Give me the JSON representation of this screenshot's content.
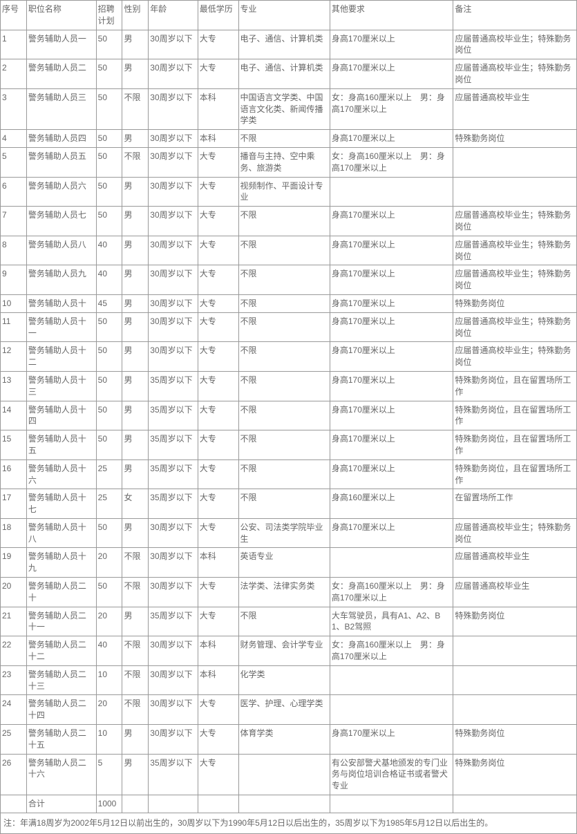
{
  "table": {
    "headers": [
      "序号",
      "职位名称",
      "招聘计划",
      "性别",
      "年龄",
      "最低学历",
      "专业",
      "其他要求",
      "备注"
    ],
    "rows": [
      [
        "1",
        "警务辅助人员一",
        "50",
        "男",
        "30周岁以下",
        "大专",
        "电子、通信、计算机类",
        "身高170厘米以上",
        "应届普通高校毕业生；特殊勤务岗位"
      ],
      [
        "2",
        "警务辅助人员二",
        "50",
        "男",
        "30周岁以下",
        "大专",
        "电子、通信、计算机类",
        "身高170厘米以上",
        "应届普通高校毕业生；特殊勤务岗位"
      ],
      [
        "3",
        "警务辅助人员三",
        "50",
        "不限",
        "30周岁以下",
        "本科",
        "中国语言文学类、中国语言文化类、新闻传播学类",
        "女：身高160厘米以上　男：身高170厘米以上",
        "应届普通高校毕业生"
      ],
      [
        "4",
        "警务辅助人员四",
        "50",
        "男",
        "30周岁以下",
        "本科",
        "不限",
        "身高170厘米以上",
        "特殊勤务岗位"
      ],
      [
        "5",
        "警务辅助人员五",
        "50",
        "不限",
        "30周岁以下",
        "大专",
        "播音与主持、空中乘务、旅游类",
        "女：身高160厘米以上　男：身高170厘米以上",
        ""
      ],
      [
        "6",
        "警务辅助人员六",
        "50",
        "男",
        "30周岁以下",
        "大专",
        "视频制作、平面设计专业",
        "",
        ""
      ],
      [
        "7",
        "警务辅助人员七",
        "50",
        "男",
        "30周岁以下",
        "大专",
        "不限",
        "身高170厘米以上",
        "应届普通高校毕业生；特殊勤务岗位"
      ],
      [
        "8",
        "警务辅助人员八",
        "40",
        "男",
        "30周岁以下",
        "大专",
        "不限",
        "身高170厘米以上",
        "应届普通高校毕业生；特殊勤务岗位"
      ],
      [
        "9",
        "警务辅助人员九",
        "40",
        "男",
        "30周岁以下",
        "大专",
        "不限",
        "身高170厘米以上",
        "应届普通高校毕业生；特殊勤务岗位"
      ],
      [
        "10",
        "警务辅助人员十",
        "45",
        "男",
        "30周岁以下",
        "大专",
        "不限",
        "身高170厘米以上",
        "特殊勤务岗位"
      ],
      [
        "11",
        "警务辅助人员十一",
        "50",
        "男",
        "30周岁以下",
        "大专",
        "不限",
        "身高170厘米以上",
        "应届普通高校毕业生；特殊勤务岗位"
      ],
      [
        "12",
        "警务辅助人员十二",
        "50",
        "男",
        "30周岁以下",
        "大专",
        "不限",
        "身高170厘米以上",
        "应届普通高校毕业生；特殊勤务岗位"
      ],
      [
        "13",
        "警务辅助人员十三",
        "50",
        "男",
        "35周岁以下",
        "大专",
        "不限",
        "身高170厘米以上",
        "特殊勤务岗位，且在留置场所工作"
      ],
      [
        "14",
        "警务辅助人员十四",
        "50",
        "男",
        "35周岁以下",
        "大专",
        "不限",
        "身高170厘米以上",
        "特殊勤务岗位，且在留置场所工作"
      ],
      [
        "15",
        "警务辅助人员十五",
        "50",
        "男",
        "35周岁以下",
        "大专",
        "不限",
        "身高170厘米以上",
        "特殊勤务岗位，且在留置场所工作"
      ],
      [
        "16",
        "警务辅助人员十六",
        "25",
        "男",
        "35周岁以下",
        "大专",
        "不限",
        "身高170厘米以上",
        "特殊勤务岗位，且在留置场所工作"
      ],
      [
        "17",
        "警务辅助人员十七",
        "25",
        "女",
        "35周岁以下",
        "大专",
        "不限",
        "身高160厘米以上",
        "在留置场所工作"
      ],
      [
        "18",
        "警务辅助人员十八",
        "50",
        "男",
        "30周岁以下",
        "大专",
        "公安、司法类学院毕业生",
        "身高170厘米以上",
        "应届普通高校毕业生；特殊勤务岗位"
      ],
      [
        "19",
        "警务辅助人员十九",
        "20",
        "不限",
        "30周岁以下",
        "本科",
        "英语专业",
        "",
        "应届普通高校毕业生"
      ],
      [
        "20",
        "警务辅助人员二十",
        "50",
        "不限",
        "30周岁以下",
        "大专",
        "法学类、法律实务类",
        "女：身高160厘米以上　男：身高170厘米以上",
        "应届普通高校毕业生"
      ],
      [
        "21",
        "警务辅助人员二十一",
        "20",
        "男",
        "35周岁以下",
        "大专",
        "不限",
        "大车驾驶员，具有A1、A2、B1、B2驾照",
        "特殊勤务岗位"
      ],
      [
        "22",
        "警务辅助人员二十二",
        "40",
        "不限",
        "30周岁以下",
        "本科",
        "财务管理、会计学专业",
        "女：身高160厘米以上　男：身高170厘米以上",
        ""
      ],
      [
        "23",
        "警务辅助人员二十三",
        "10",
        "不限",
        "30周岁以下",
        "本科",
        "化学类",
        "",
        ""
      ],
      [
        "24",
        "警务辅助人员二十四",
        "20",
        "不限",
        "30周岁以下",
        "大专",
        "医学、护理、心理学类",
        "",
        ""
      ],
      [
        "25",
        "警务辅助人员二十五",
        "10",
        "男",
        "30周岁以下",
        "大专",
        "体育学类",
        "身高170厘米以上",
        "特殊勤务岗位"
      ],
      [
        "26",
        "警务辅助人员二十六",
        "5",
        "男",
        "35周岁以下",
        "大专",
        "",
        "有公安部警犬基地颁发的专门业务与岗位培训合格证书或者警犬专业",
        "特殊勤务岗位"
      ]
    ],
    "total_row": [
      "",
      "合计",
      "1000",
      "",
      "",
      "",
      "",
      "",
      ""
    ],
    "footnote": "注：年满18周岁为2002年5月12日以前出生的，30周岁以下为1990年5月12日以后出生的，35周岁以下为1985年5月12日以后出生的。",
    "column_classes": [
      "col-seq",
      "col-name",
      "col-plan",
      "col-gender",
      "col-age",
      "col-edu",
      "col-major",
      "col-other",
      "col-note"
    ]
  },
  "colors": {
    "border": "#999999",
    "text": "#666666",
    "background": "#ffffff"
  }
}
